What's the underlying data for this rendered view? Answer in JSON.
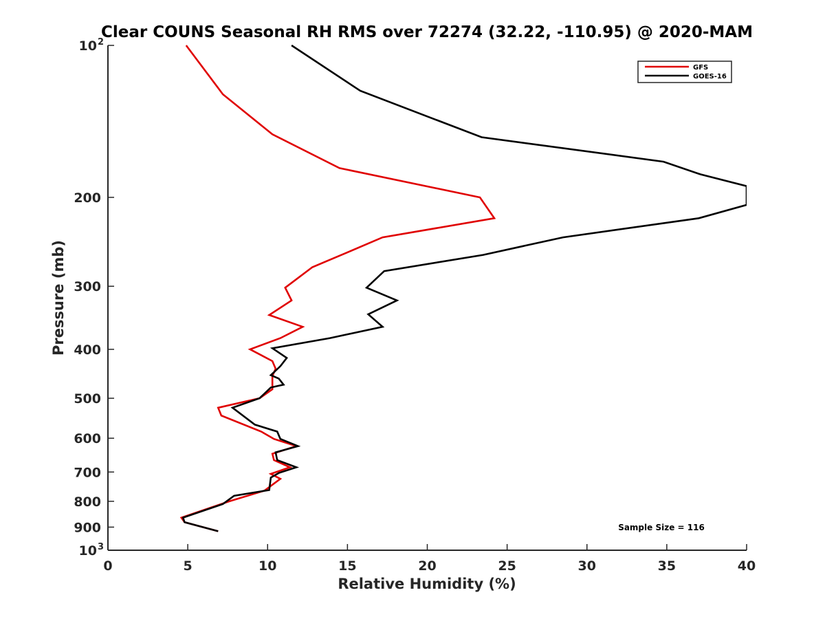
{
  "chart_data": {
    "type": "line",
    "title": "Clear COUNS Seasonal RH RMS over 72274 (32.22, -110.95) @ 2020-MAM",
    "xlabel": "Relative Humidity (%)",
    "ylabel": "Pressure (mb)",
    "xlim": [
      0,
      40
    ],
    "ylim": [
      100,
      1000
    ],
    "yscale": "log",
    "y_reversed": true,
    "x_ticks": [
      0,
      5,
      10,
      15,
      20,
      25,
      30,
      35,
      40
    ],
    "y_ticks": [
      {
        "value": 100,
        "base": "10",
        "exp": "2"
      },
      {
        "value": 200,
        "base": "200",
        "exp": ""
      },
      {
        "value": 300,
        "base": "300",
        "exp": ""
      },
      {
        "value": 400,
        "base": "400",
        "exp": ""
      },
      {
        "value": 500,
        "base": "500",
        "exp": ""
      },
      {
        "value": 600,
        "base": "600",
        "exp": ""
      },
      {
        "value": 700,
        "base": "700",
        "exp": ""
      },
      {
        "value": 800,
        "base": "800",
        "exp": ""
      },
      {
        "value": 900,
        "base": "900",
        "exp": ""
      },
      {
        "value": 1000,
        "base": "10",
        "exp": "3"
      }
    ],
    "legend_position": "top-right",
    "annotation": "Sample Size = 116",
    "series": [
      {
        "name": "GFS",
        "color": "#e00000",
        "points": [
          [
            4.9,
            100
          ],
          [
            7.2,
            125
          ],
          [
            10.3,
            150
          ],
          [
            14.5,
            175
          ],
          [
            23.3,
            200
          ],
          [
            24.2,
            220
          ],
          [
            17.2,
            240
          ],
          [
            15.0,
            257
          ],
          [
            12.8,
            275
          ],
          [
            11.1,
            302
          ],
          [
            11.5,
            320
          ],
          [
            10.1,
            342
          ],
          [
            12.2,
            361
          ],
          [
            10.8,
            380
          ],
          [
            8.9,
            400
          ],
          [
            10.3,
            422
          ],
          [
            10.5,
            437
          ],
          [
            10.3,
            452
          ],
          [
            10.3,
            480
          ],
          [
            9.5,
            500
          ],
          [
            6.9,
            522
          ],
          [
            7.1,
            541
          ],
          [
            9.6,
            582
          ],
          [
            10.4,
            602
          ],
          [
            11.8,
            622
          ],
          [
            10.3,
            644
          ],
          [
            10.4,
            663
          ],
          [
            11.4,
            685
          ],
          [
            10.2,
            706
          ],
          [
            10.8,
            722
          ],
          [
            9.8,
            762
          ],
          [
            7.6,
            800
          ],
          [
            4.6,
            862
          ],
          [
            4.8,
            880
          ],
          [
            6.9,
            917
          ]
        ]
      },
      {
        "name": "GOES-16",
        "color": "#000000",
        "points": [
          [
            11.5,
            100
          ],
          [
            15.8,
            123
          ],
          [
            23.4,
            152
          ],
          [
            34.8,
            170
          ],
          [
            37.1,
            180
          ],
          [
            40.0,
            190
          ],
          [
            40.0,
            207
          ],
          [
            37.0,
            220
          ],
          [
            28.5,
            240
          ],
          [
            23.5,
            260
          ],
          [
            17.3,
            280
          ],
          [
            16.2,
            302
          ],
          [
            18.1,
            320
          ],
          [
            16.3,
            341
          ],
          [
            17.2,
            361
          ],
          [
            13.9,
            380
          ],
          [
            10.3,
            398
          ],
          [
            11.2,
            416
          ],
          [
            10.8,
            432
          ],
          [
            10.2,
            450
          ],
          [
            10.7,
            457
          ],
          [
            11.0,
            470
          ],
          [
            10.2,
            476
          ],
          [
            9.5,
            500
          ],
          [
            7.8,
            522
          ],
          [
            9.2,
            564
          ],
          [
            10.6,
            582
          ],
          [
            10.8,
            602
          ],
          [
            11.9,
            622
          ],
          [
            10.5,
            640
          ],
          [
            10.6,
            663
          ],
          [
            11.8,
            685
          ],
          [
            10.7,
            703
          ],
          [
            10.2,
            718
          ],
          [
            10.1,
            760
          ],
          [
            7.9,
            780
          ],
          [
            7.2,
            810
          ],
          [
            4.7,
            862
          ],
          [
            4.8,
            880
          ],
          [
            6.9,
            917
          ]
        ]
      }
    ]
  }
}
